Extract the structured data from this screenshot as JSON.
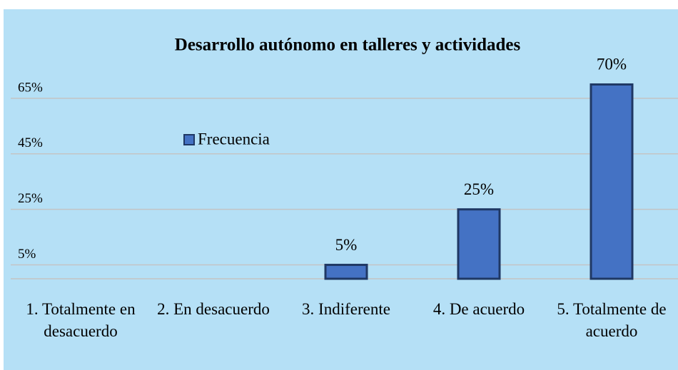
{
  "chart_data": {
    "type": "bar",
    "title": "Desarrollo autónomo en talleres y actividades",
    "categories": [
      "1. Totalmente en desacuerdo",
      "2. En desacuerdo",
      "3. Indiferente",
      "4. De acuerdo",
      "5. Totalmente de acuerdo"
    ],
    "series": [
      {
        "name": "Frecuencia",
        "color": "#4472c4",
        "values": [
          0,
          0,
          5,
          25,
          70
        ],
        "value_labels": [
          null,
          null,
          "5%",
          "25%",
          "70%"
        ]
      }
    ],
    "ylim": [
      0,
      75
    ],
    "yticks": [
      {
        "value": 5,
        "label": "5%"
      },
      {
        "value": 25,
        "label": "25%"
      },
      {
        "value": 45,
        "label": "45%"
      },
      {
        "value": 65,
        "label": "65%"
      }
    ],
    "grid": true
  }
}
